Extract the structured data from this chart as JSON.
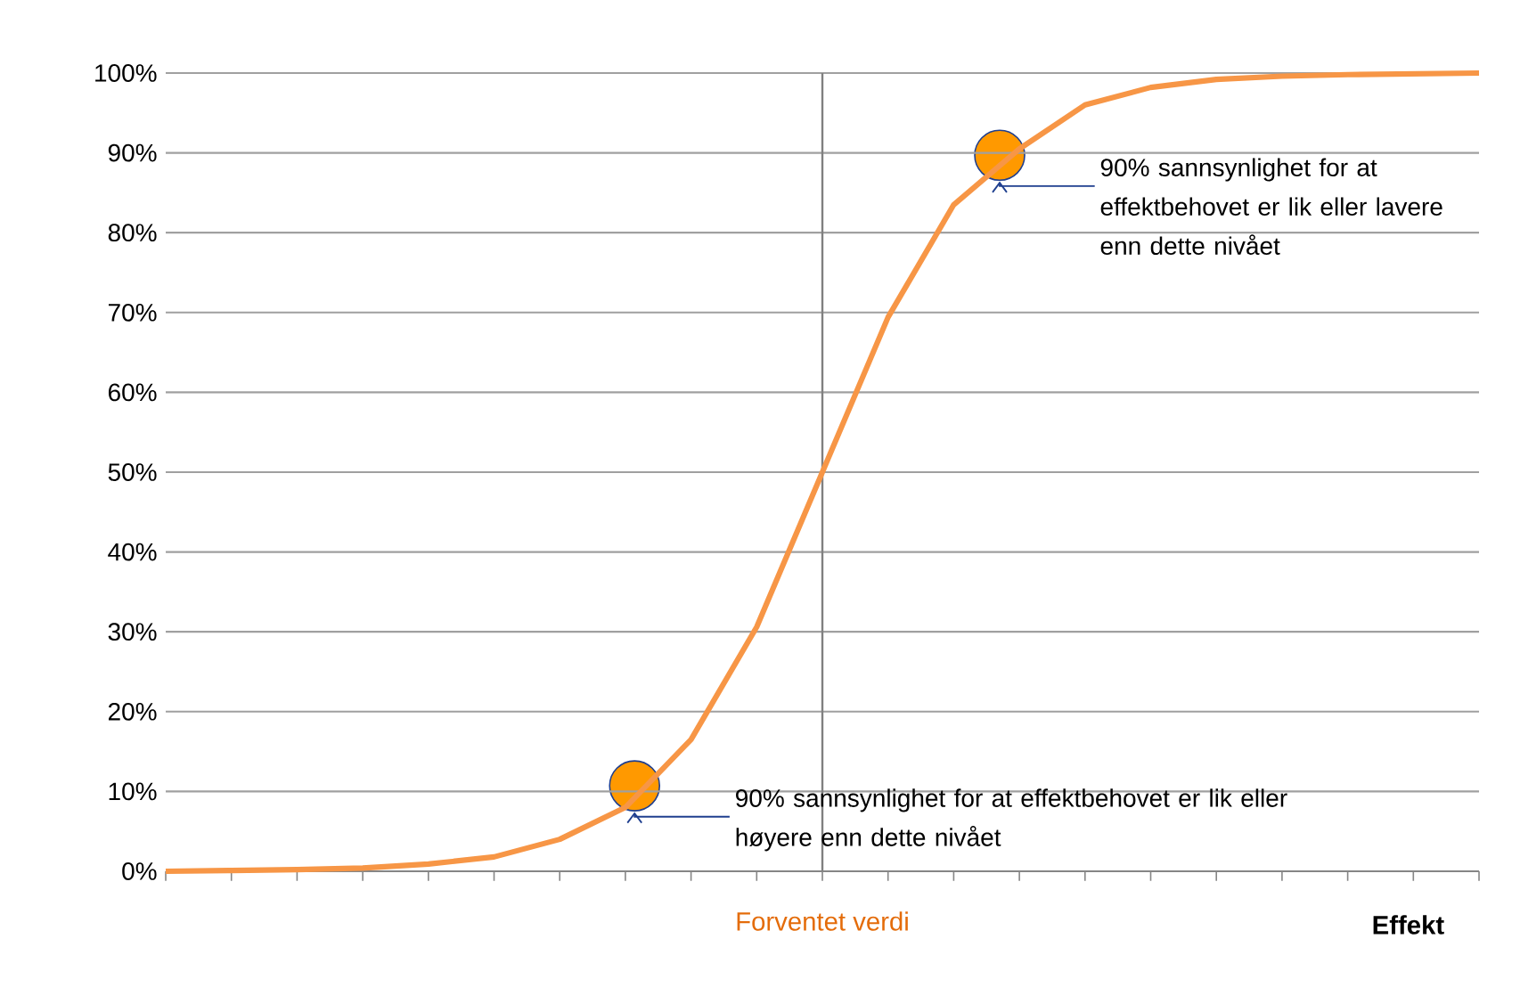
{
  "chart_data": {
    "type": "line",
    "xlabel": "Effekt",
    "categories": [
      null,
      null,
      null,
      null,
      null,
      null,
      null,
      null,
      null,
      null,
      null,
      null,
      null,
      null,
      null,
      null,
      null,
      null,
      null,
      null,
      null
    ],
    "ylim": [
      0,
      100
    ],
    "yticks": [
      {
        "value": 0,
        "label": "0%"
      },
      {
        "value": 10,
        "label": "10%"
      },
      {
        "value": 20,
        "label": "20%"
      },
      {
        "value": 30,
        "label": "30%"
      },
      {
        "value": 40,
        "label": "40%"
      },
      {
        "value": 50,
        "label": "50%"
      },
      {
        "value": 60,
        "label": "60%"
      },
      {
        "value": 70,
        "label": "70%"
      },
      {
        "value": 80,
        "label": "80%"
      },
      {
        "value": 90,
        "label": "90%"
      },
      {
        "value": 100,
        "label": "100%"
      }
    ],
    "grid": "y",
    "tick_labels": "y",
    "series": [
      {
        "color": "#f79646",
        "values": [
          0,
          0.1,
          0.2,
          0.4,
          0.9,
          1.8,
          4,
          8,
          16.5,
          30.6,
          50,
          69.4,
          83.5,
          90.5,
          96,
          98.2,
          99.2,
          99.6,
          99.8,
          99.9,
          100
        ]
      }
    ],
    "annotations": [
      "90% sannsynlighet for at effektbehovet er lik eller høyere enn dette nivået",
      "90% sannsynlighet for at effektbehovet er lik eller lavere enn dette nivået",
      "Forventet verdi"
    ]
  }
}
